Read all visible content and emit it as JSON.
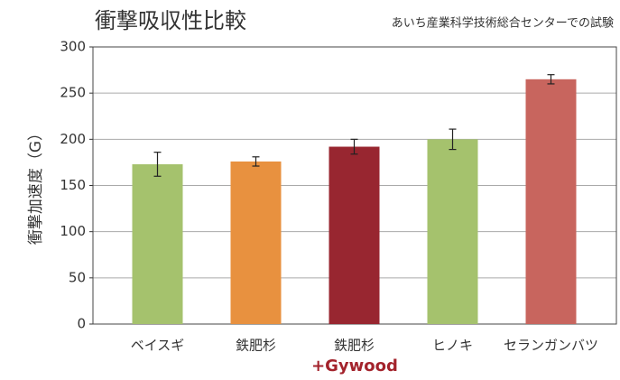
{
  "chart_data": {
    "type": "bar",
    "title": "衝撃吸収性比較",
    "subtitle": "あいち産業科学技術総合センターでの試験",
    "y_label": "衝撃加速度（G）",
    "annotation": "+Gywood",
    "categories": [
      "ベイスギ",
      "鉄肥杉",
      "鉄肥杉",
      "ヒノキ",
      "セランガンバツ"
    ],
    "values": [
      173,
      176,
      192,
      200,
      265
    ],
    "errors": [
      13,
      5,
      8,
      11,
      5
    ],
    "colors": [
      "#a5c26d",
      "#e8913f",
      "#982630",
      "#a5c26d",
      "#c8655e"
    ],
    "ylim": [
      0,
      300
    ],
    "yticks": [
      0,
      50,
      100,
      150,
      200,
      250,
      300
    ],
    "grid": true
  }
}
